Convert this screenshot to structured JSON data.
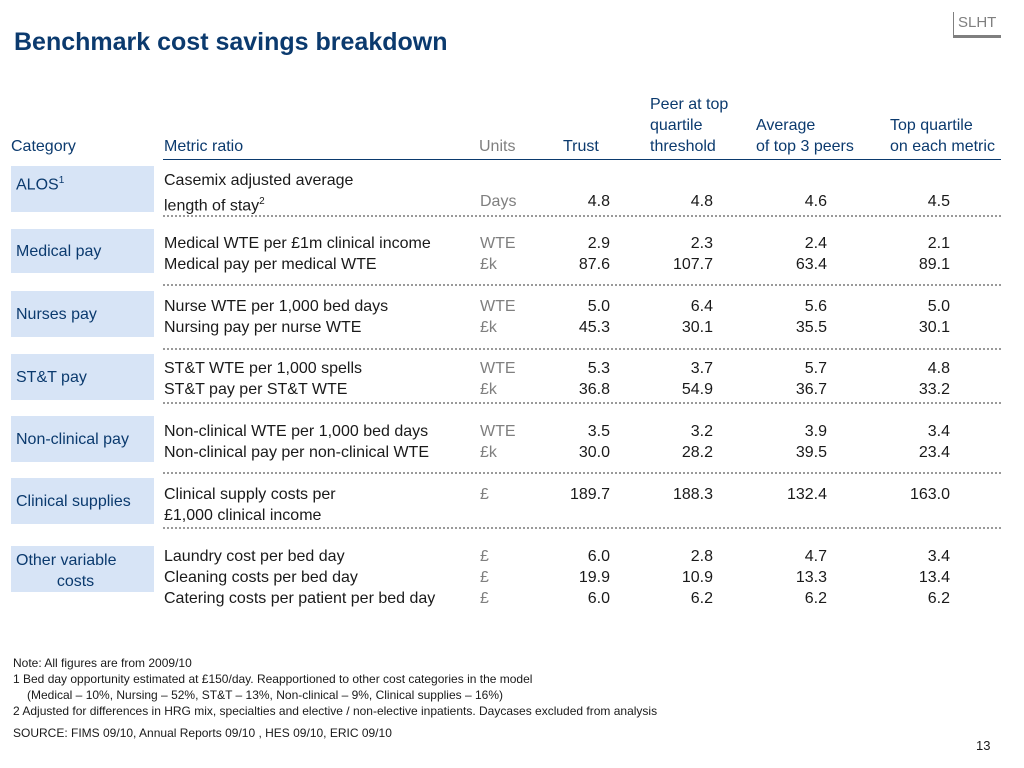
{
  "logo": "SLHT",
  "title": "Benchmark cost savings breakdown",
  "headers": {
    "category": "Category",
    "metric": "Metric ratio",
    "units": "Units",
    "trust": "Trust",
    "peer_l1": "Peer at top",
    "peer_l2": "quartile",
    "peer_l3": "threshold",
    "avg_l1": "Average",
    "avg_l2": "of top 3 peers",
    "top_l1": "Top quartile",
    "top_l2": "on each metric"
  },
  "rows": {
    "alos": {
      "category": "ALOS",
      "category_sup": "1",
      "metric_l1": "Casemix adjusted average",
      "metric_l2": "length of stay",
      "metric_sup": "2",
      "unit": "Days",
      "trust": "4.8",
      "peer": "4.8",
      "avg": "4.6",
      "top": "4.5"
    },
    "medical": {
      "category": "Medical pay",
      "lines": [
        {
          "metric": "Medical WTE per £1m clinical income",
          "unit": "WTE",
          "trust": "2.9",
          "peer": "2.3",
          "avg": "2.4",
          "top": "2.1"
        },
        {
          "metric": "Medical pay per medical WTE",
          "unit": "£k",
          "trust": "87.6",
          "peer": "107.7",
          "avg": "63.4",
          "top": "89.1"
        }
      ]
    },
    "nurses": {
      "category": "Nurses pay",
      "lines": [
        {
          "metric": "Nurse WTE per 1,000 bed days",
          "unit": "WTE",
          "trust": "5.0",
          "peer": "6.4",
          "avg": "5.6",
          "top": "5.0"
        },
        {
          "metric": "Nursing pay per nurse WTE",
          "unit": "£k",
          "trust": "45.3",
          "peer": "30.1",
          "avg": "35.5",
          "top": "30.1"
        }
      ]
    },
    "stt": {
      "category": "ST&T pay",
      "lines": [
        {
          "metric": "ST&T WTE per 1,000 spells",
          "unit": "WTE",
          "trust": "5.3",
          "peer": "3.7",
          "avg": "5.7",
          "top": "4.8"
        },
        {
          "metric": "ST&T pay per ST&T WTE",
          "unit": "£k",
          "trust": "36.8",
          "peer": "54.9",
          "avg": "36.7",
          "top": "33.2"
        }
      ]
    },
    "nonclinical": {
      "category": "Non-clinical pay",
      "lines": [
        {
          "metric": "Non-clinical WTE per 1,000 bed days",
          "unit": "WTE",
          "trust": "3.5",
          "peer": "3.2",
          "avg": "3.9",
          "top": "3.4"
        },
        {
          "metric": "Non-clinical pay per non-clinical WTE",
          "unit": "£k",
          "trust": "30.0",
          "peer": "28.2",
          "avg": "39.5",
          "top": "23.4"
        }
      ]
    },
    "supplies": {
      "category": "Clinical supplies",
      "metric_l1": "Clinical supply costs per",
      "metric_l2": "£1,000 clinical income",
      "unit": "£",
      "trust": "189.7",
      "peer": "188.3",
      "avg": "132.4",
      "top": "163.0"
    },
    "other": {
      "category_l1": "Other variable",
      "category_l2": "costs",
      "lines": [
        {
          "metric": "Laundry cost per bed day",
          "unit": "£",
          "trust": "6.0",
          "peer": "2.8",
          "avg": "4.7",
          "top": "3.4"
        },
        {
          "metric": "Cleaning costs per bed day",
          "unit": "£",
          "trust": "19.9",
          "peer": "10.9",
          "avg": "13.3",
          "top": "13.4"
        },
        {
          "metric": "Catering costs per patient per bed day",
          "unit": "£",
          "trust": "6.0",
          "peer": "6.2",
          "avg": "6.2",
          "top": "6.2"
        }
      ]
    }
  },
  "notes": {
    "n0": "Note: All figures are from 2009/10",
    "n1": "1  Bed day opportunity estimated at £150/day. Reapportioned to other cost categories in the model",
    "n1b": "(Medical – 10%, Nursing – 52%, ST&T – 13%, Non-clinical – 9%, Clinical supplies – 16%)",
    "n2": "2 Adjusted for differences in HRG mix, specialties and elective / non-elective inpatients. Daycases excluded from analysis"
  },
  "source": "SOURCE: FIMS 09/10, Annual Reports 09/10 , HES 09/10, ERIC 09/10",
  "page_number": "13"
}
